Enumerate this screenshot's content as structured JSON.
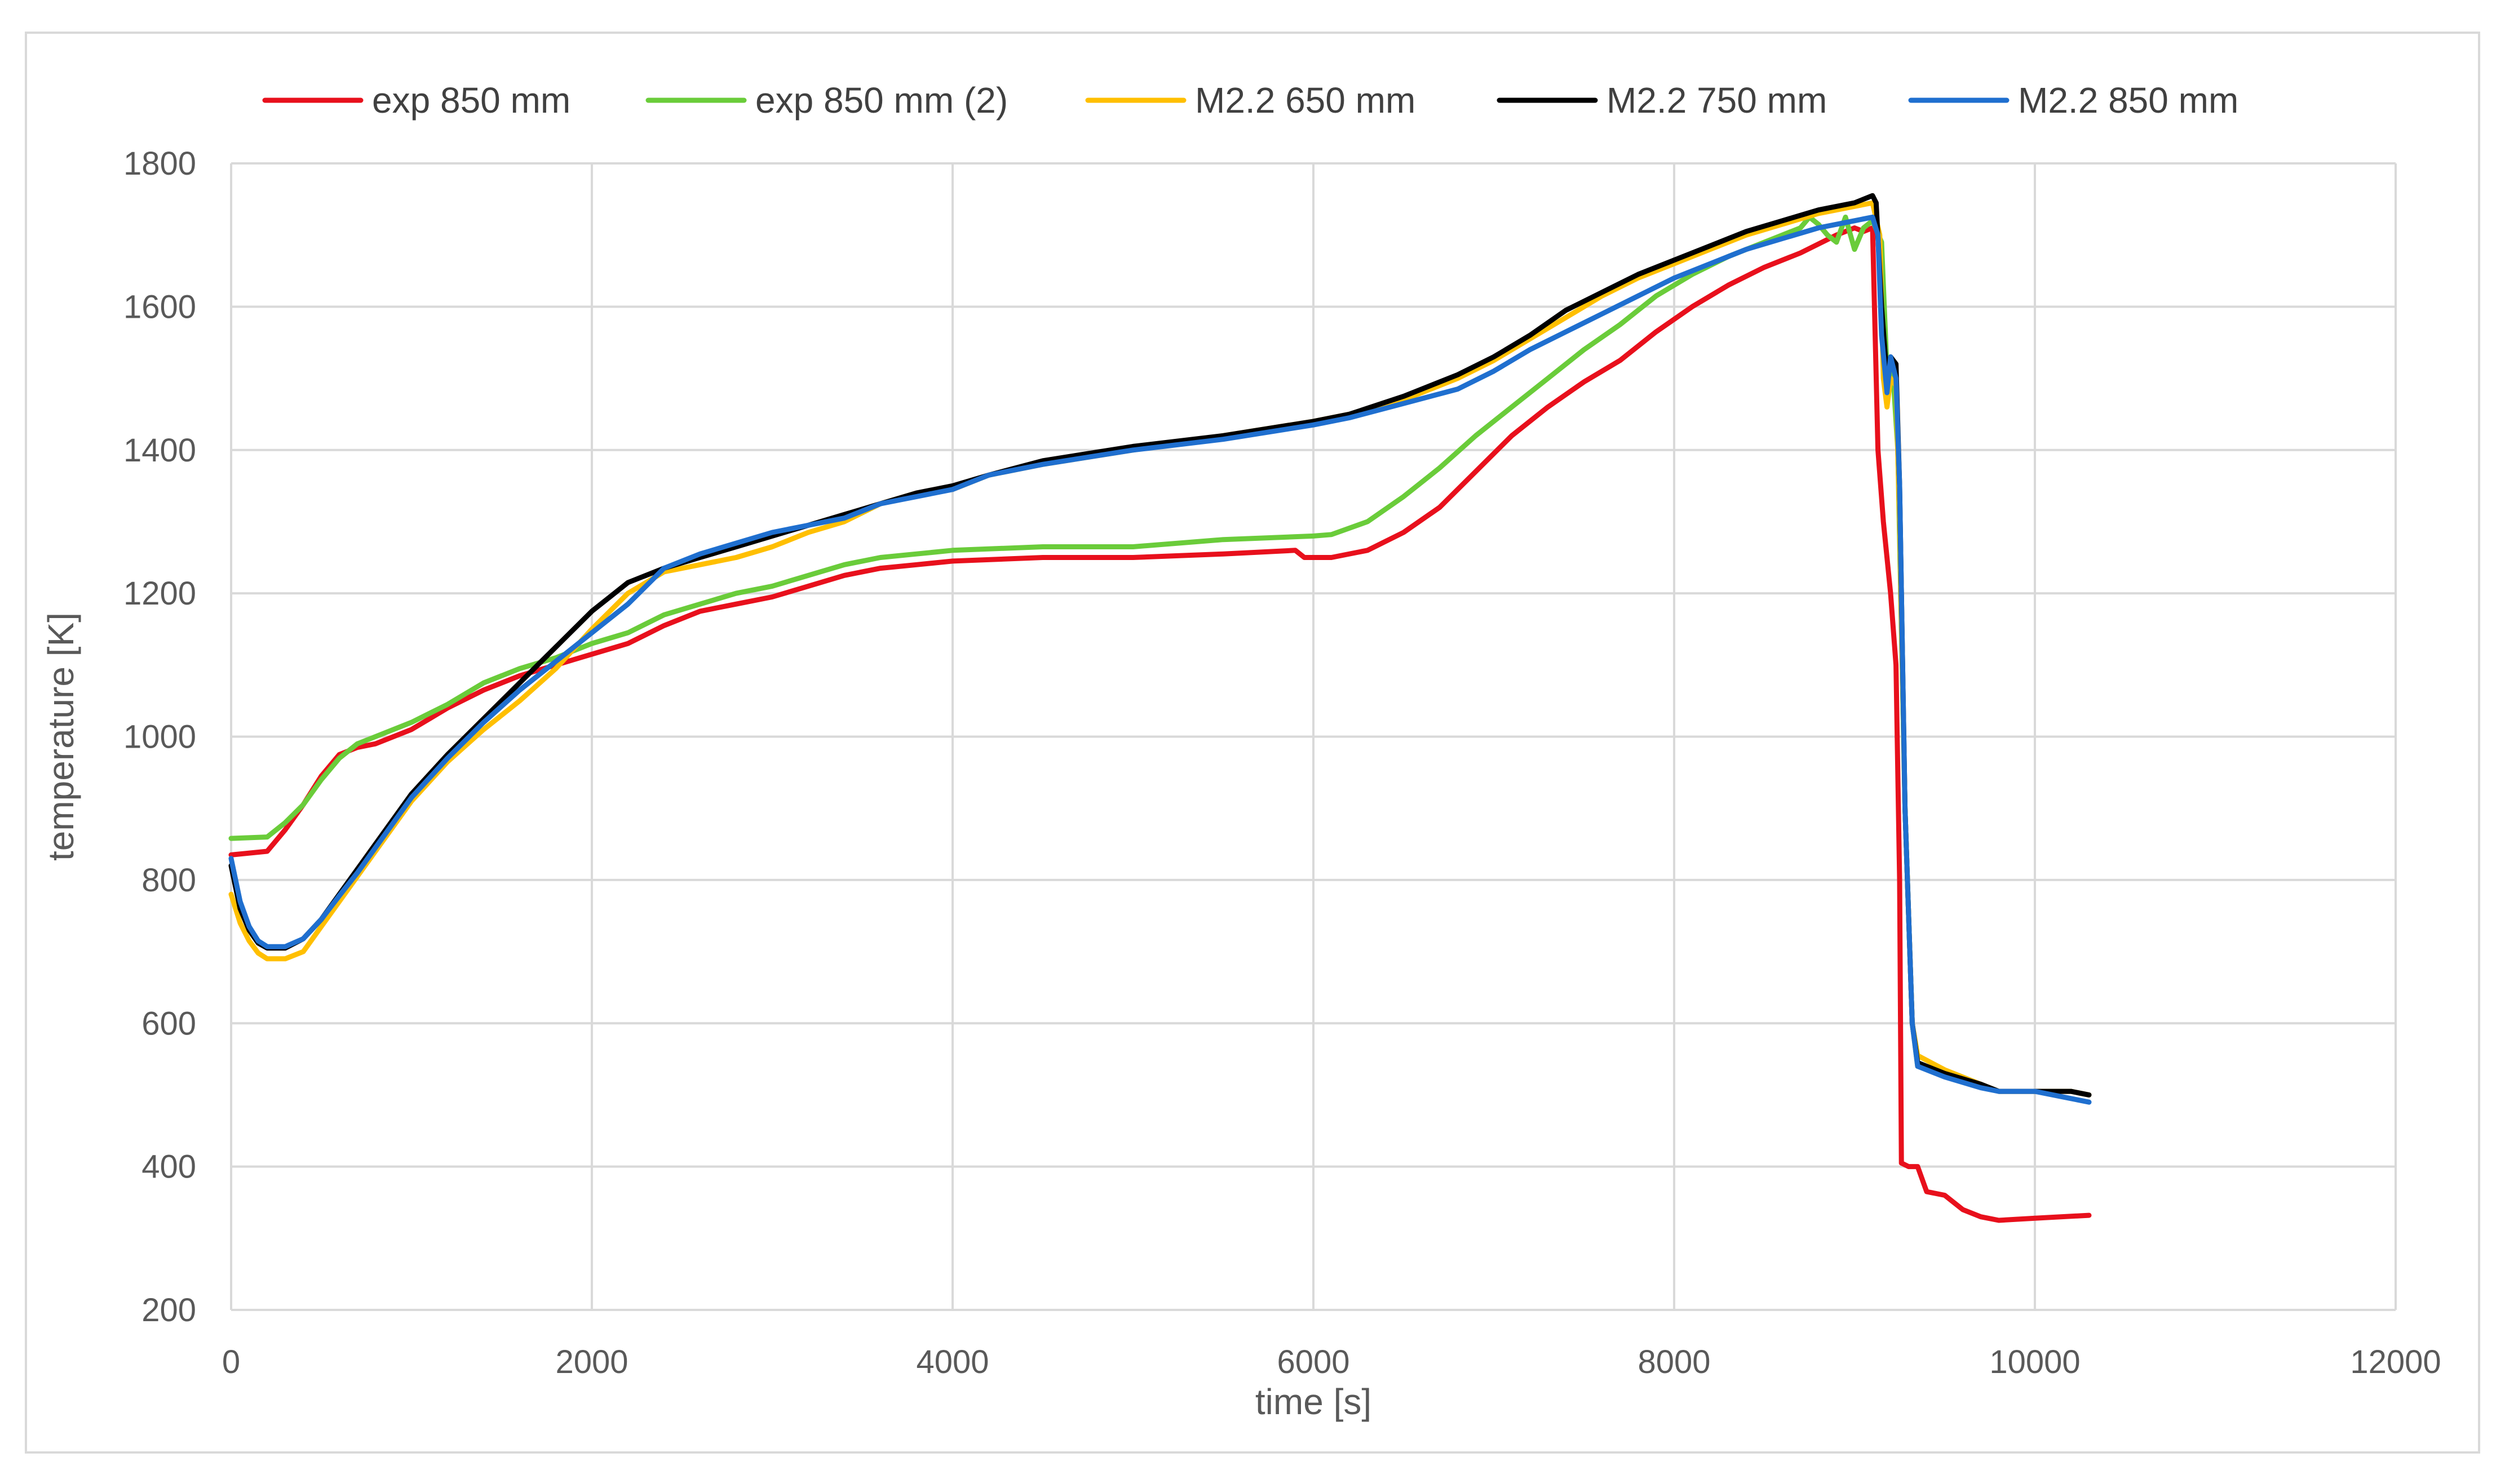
{
  "chart_data": {
    "type": "line",
    "title": "",
    "xlabel": "time [s]",
    "ylabel": "temperature [K]",
    "xlim": [
      0,
      12000
    ],
    "ylim": [
      200,
      1800
    ],
    "xticks": [
      0,
      2000,
      4000,
      6000,
      8000,
      10000,
      12000
    ],
    "xtick_labels": [
      "0",
      "2000",
      "4000",
      "6000",
      "8000",
      "10000",
      "12000"
    ],
    "yticks": [
      200,
      400,
      600,
      800,
      1000,
      1200,
      1400,
      1600,
      1800
    ],
    "ytick_labels": [
      "200",
      "400",
      "600",
      "800",
      "1000",
      "1200",
      "1400",
      "1600",
      "1800"
    ],
    "grid": true,
    "legend_position": "top",
    "series": [
      {
        "name": "exp 850 mm",
        "color": "#e8101c",
        "points": [
          [
            0,
            835
          ],
          [
            200,
            840
          ],
          [
            300,
            870
          ],
          [
            400,
            905
          ],
          [
            500,
            945
          ],
          [
            600,
            975
          ],
          [
            700,
            985
          ],
          [
            800,
            990
          ],
          [
            1000,
            1010
          ],
          [
            1200,
            1040
          ],
          [
            1400,
            1065
          ],
          [
            1600,
            1085
          ],
          [
            1800,
            1100
          ],
          [
            2000,
            1115
          ],
          [
            2200,
            1130
          ],
          [
            2400,
            1155
          ],
          [
            2600,
            1175
          ],
          [
            2800,
            1185
          ],
          [
            3000,
            1195
          ],
          [
            3200,
            1210
          ],
          [
            3400,
            1225
          ],
          [
            3600,
            1235
          ],
          [
            3800,
            1240
          ],
          [
            4000,
            1245
          ],
          [
            4500,
            1250
          ],
          [
            5000,
            1250
          ],
          [
            5500,
            1255
          ],
          [
            5900,
            1260
          ],
          [
            5950,
            1250
          ],
          [
            6100,
            1250
          ],
          [
            6300,
            1260
          ],
          [
            6500,
            1285
          ],
          [
            6700,
            1320
          ],
          [
            6900,
            1370
          ],
          [
            7100,
            1420
          ],
          [
            7300,
            1460
          ],
          [
            7500,
            1495
          ],
          [
            7700,
            1525
          ],
          [
            7900,
            1565
          ],
          [
            8100,
            1600
          ],
          [
            8300,
            1630
          ],
          [
            8500,
            1655
          ],
          [
            8700,
            1675
          ],
          [
            8900,
            1700
          ],
          [
            9000,
            1710
          ],
          [
            9050,
            1705
          ],
          [
            9100,
            1710
          ],
          [
            9130,
            1400
          ],
          [
            9160,
            1300
          ],
          [
            9200,
            1200
          ],
          [
            9230,
            1100
          ],
          [
            9250,
            800
          ],
          [
            9260,
            405
          ],
          [
            9300,
            400
          ],
          [
            9350,
            400
          ],
          [
            9400,
            365
          ],
          [
            9500,
            360
          ],
          [
            9600,
            340
          ],
          [
            9700,
            330
          ],
          [
            9800,
            325
          ],
          [
            10000,
            328
          ],
          [
            10300,
            332
          ]
        ]
      },
      {
        "name": "exp 850 mm (2)",
        "color": "#6acc3a",
        "points": [
          [
            0,
            858
          ],
          [
            200,
            860
          ],
          [
            300,
            880
          ],
          [
            400,
            905
          ],
          [
            500,
            940
          ],
          [
            600,
            970
          ],
          [
            700,
            990
          ],
          [
            800,
            1000
          ],
          [
            1000,
            1020
          ],
          [
            1200,
            1045
          ],
          [
            1400,
            1075
          ],
          [
            1600,
            1095
          ],
          [
            1800,
            1110
          ],
          [
            2000,
            1130
          ],
          [
            2200,
            1145
          ],
          [
            2400,
            1170
          ],
          [
            2600,
            1185
          ],
          [
            2800,
            1200
          ],
          [
            3000,
            1210
          ],
          [
            3200,
            1225
          ],
          [
            3400,
            1240
          ],
          [
            3600,
            1250
          ],
          [
            3800,
            1255
          ],
          [
            4000,
            1260
          ],
          [
            4500,
            1265
          ],
          [
            5000,
            1265
          ],
          [
            5500,
            1275
          ],
          [
            6000,
            1280
          ],
          [
            6100,
            1282
          ],
          [
            6300,
            1300
          ],
          [
            6500,
            1335
          ],
          [
            6700,
            1375
          ],
          [
            6900,
            1420
          ],
          [
            7100,
            1460
          ],
          [
            7300,
            1500
          ],
          [
            7500,
            1540
          ],
          [
            7700,
            1575
          ],
          [
            7900,
            1615
          ],
          [
            8100,
            1645
          ],
          [
            8300,
            1670
          ],
          [
            8500,
            1690
          ],
          [
            8700,
            1710
          ],
          [
            8750,
            1725
          ],
          [
            8800,
            1715
          ],
          [
            8850,
            1700
          ],
          [
            8900,
            1690
          ],
          [
            8950,
            1725
          ],
          [
            9000,
            1680
          ],
          [
            9050,
            1710
          ],
          [
            9100,
            1720
          ],
          [
            9150,
            1690
          ],
          [
            9180,
            1510
          ],
          [
            9210,
            1520
          ],
          [
            9240,
            1400
          ],
          [
            9280,
            900
          ],
          [
            9320,
            600
          ],
          [
            9350,
            540
          ]
        ]
      },
      {
        "name": "M2.2 650 mm",
        "color": "#ffbf00",
        "points": [
          [
            0,
            780
          ],
          [
            50,
            740
          ],
          [
            100,
            715
          ],
          [
            150,
            698
          ],
          [
            200,
            690
          ],
          [
            300,
            690
          ],
          [
            400,
            700
          ],
          [
            500,
            735
          ],
          [
            600,
            770
          ],
          [
            700,
            805
          ],
          [
            800,
            840
          ],
          [
            1000,
            910
          ],
          [
            1200,
            965
          ],
          [
            1400,
            1010
          ],
          [
            1600,
            1050
          ],
          [
            1800,
            1095
          ],
          [
            2000,
            1150
          ],
          [
            2200,
            1200
          ],
          [
            2400,
            1230
          ],
          [
            2600,
            1240
          ],
          [
            2800,
            1250
          ],
          [
            3000,
            1265
          ],
          [
            3200,
            1285
          ],
          [
            3400,
            1300
          ],
          [
            3600,
            1325
          ],
          [
            3800,
            1340
          ],
          [
            4000,
            1345
          ],
          [
            4200,
            1365
          ],
          [
            4500,
            1380
          ],
          [
            5000,
            1400
          ],
          [
            5500,
            1420
          ],
          [
            6000,
            1440
          ],
          [
            6200,
            1450
          ],
          [
            6500,
            1470
          ],
          [
            6800,
            1500
          ],
          [
            7000,
            1525
          ],
          [
            7200,
            1555
          ],
          [
            7400,
            1585
          ],
          [
            7600,
            1615
          ],
          [
            7800,
            1640
          ],
          [
            8000,
            1660
          ],
          [
            8200,
            1680
          ],
          [
            8400,
            1700
          ],
          [
            8600,
            1715
          ],
          [
            8800,
            1730
          ],
          [
            9000,
            1740
          ],
          [
            9100,
            1745
          ],
          [
            9140,
            1700
          ],
          [
            9160,
            1500
          ],
          [
            9180,
            1460
          ],
          [
            9200,
            1500
          ],
          [
            9230,
            1490
          ],
          [
            9250,
            1300
          ],
          [
            9280,
            900
          ],
          [
            9320,
            600
          ],
          [
            9350,
            555
          ],
          [
            9500,
            535
          ],
          [
            9700,
            515
          ],
          [
            9800,
            505
          ],
          [
            10000,
            505
          ],
          [
            10200,
            505
          ],
          [
            10300,
            500
          ]
        ]
      },
      {
        "name": "M2.2 750 mm",
        "color": "#000000",
        "points": [
          [
            0,
            820
          ],
          [
            50,
            760
          ],
          [
            100,
            730
          ],
          [
            150,
            712
          ],
          [
            200,
            705
          ],
          [
            300,
            705
          ],
          [
            400,
            718
          ],
          [
            500,
            745
          ],
          [
            600,
            780
          ],
          [
            700,
            815
          ],
          [
            800,
            850
          ],
          [
            1000,
            920
          ],
          [
            1200,
            975
          ],
          [
            1400,
            1025
          ],
          [
            1600,
            1075
          ],
          [
            1800,
            1125
          ],
          [
            2000,
            1175
          ],
          [
            2100,
            1195
          ],
          [
            2200,
            1215
          ],
          [
            2400,
            1235
          ],
          [
            2600,
            1250
          ],
          [
            2800,
            1265
          ],
          [
            3000,
            1280
          ],
          [
            3200,
            1295
          ],
          [
            3400,
            1310
          ],
          [
            3600,
            1325
          ],
          [
            3800,
            1340
          ],
          [
            4000,
            1350
          ],
          [
            4200,
            1365
          ],
          [
            4500,
            1385
          ],
          [
            5000,
            1405
          ],
          [
            5500,
            1420
          ],
          [
            6000,
            1440
          ],
          [
            6200,
            1450
          ],
          [
            6500,
            1475
          ],
          [
            6800,
            1505
          ],
          [
            7000,
            1530
          ],
          [
            7200,
            1560
          ],
          [
            7400,
            1595
          ],
          [
            7600,
            1620
          ],
          [
            7800,
            1645
          ],
          [
            8000,
            1665
          ],
          [
            8200,
            1685
          ],
          [
            8400,
            1705
          ],
          [
            8600,
            1720
          ],
          [
            8800,
            1735
          ],
          [
            9000,
            1745
          ],
          [
            9100,
            1755
          ],
          [
            9120,
            1745
          ],
          [
            9150,
            1600
          ],
          [
            9180,
            1500
          ],
          [
            9200,
            1530
          ],
          [
            9230,
            1520
          ],
          [
            9250,
            1350
          ],
          [
            9280,
            900
          ],
          [
            9320,
            600
          ],
          [
            9350,
            545
          ],
          [
            9500,
            530
          ],
          [
            9700,
            515
          ],
          [
            9800,
            505
          ],
          [
            10000,
            505
          ],
          [
            10200,
            505
          ],
          [
            10300,
            500
          ]
        ]
      },
      {
        "name": "M2.2 850 mm",
        "color": "#1f6fcf",
        "points": [
          [
            0,
            830
          ],
          [
            50,
            770
          ],
          [
            100,
            735
          ],
          [
            150,
            715
          ],
          [
            200,
            707
          ],
          [
            300,
            707
          ],
          [
            400,
            718
          ],
          [
            500,
            745
          ],
          [
            600,
            778
          ],
          [
            700,
            810
          ],
          [
            800,
            845
          ],
          [
            1000,
            915
          ],
          [
            1200,
            970
          ],
          [
            1400,
            1020
          ],
          [
            1600,
            1065
          ],
          [
            1800,
            1105
          ],
          [
            2000,
            1145
          ],
          [
            2200,
            1185
          ],
          [
            2400,
            1235
          ],
          [
            2600,
            1255
          ],
          [
            2800,
            1270
          ],
          [
            3000,
            1285
          ],
          [
            3200,
            1295
          ],
          [
            3400,
            1305
          ],
          [
            3600,
            1325
          ],
          [
            3800,
            1335
          ],
          [
            4000,
            1345
          ],
          [
            4200,
            1365
          ],
          [
            4500,
            1380
          ],
          [
            5000,
            1400
          ],
          [
            5500,
            1415
          ],
          [
            6000,
            1435
          ],
          [
            6200,
            1445
          ],
          [
            6500,
            1465
          ],
          [
            6800,
            1485
          ],
          [
            7000,
            1510
          ],
          [
            7200,
            1540
          ],
          [
            7400,
            1565
          ],
          [
            7600,
            1590
          ],
          [
            7800,
            1615
          ],
          [
            8000,
            1640
          ],
          [
            8200,
            1660
          ],
          [
            8400,
            1680
          ],
          [
            8600,
            1695
          ],
          [
            8800,
            1710
          ],
          [
            9000,
            1720
          ],
          [
            9100,
            1725
          ],
          [
            9130,
            1700
          ],
          [
            9150,
            1560
          ],
          [
            9180,
            1480
          ],
          [
            9200,
            1530
          ],
          [
            9230,
            1500
          ],
          [
            9250,
            1350
          ],
          [
            9280,
            900
          ],
          [
            9320,
            600
          ],
          [
            9350,
            540
          ],
          [
            9500,
            525
          ],
          [
            9700,
            510
          ],
          [
            9800,
            505
          ],
          [
            10000,
            505
          ],
          [
            10200,
            495
          ],
          [
            10300,
            490
          ]
        ]
      }
    ]
  }
}
